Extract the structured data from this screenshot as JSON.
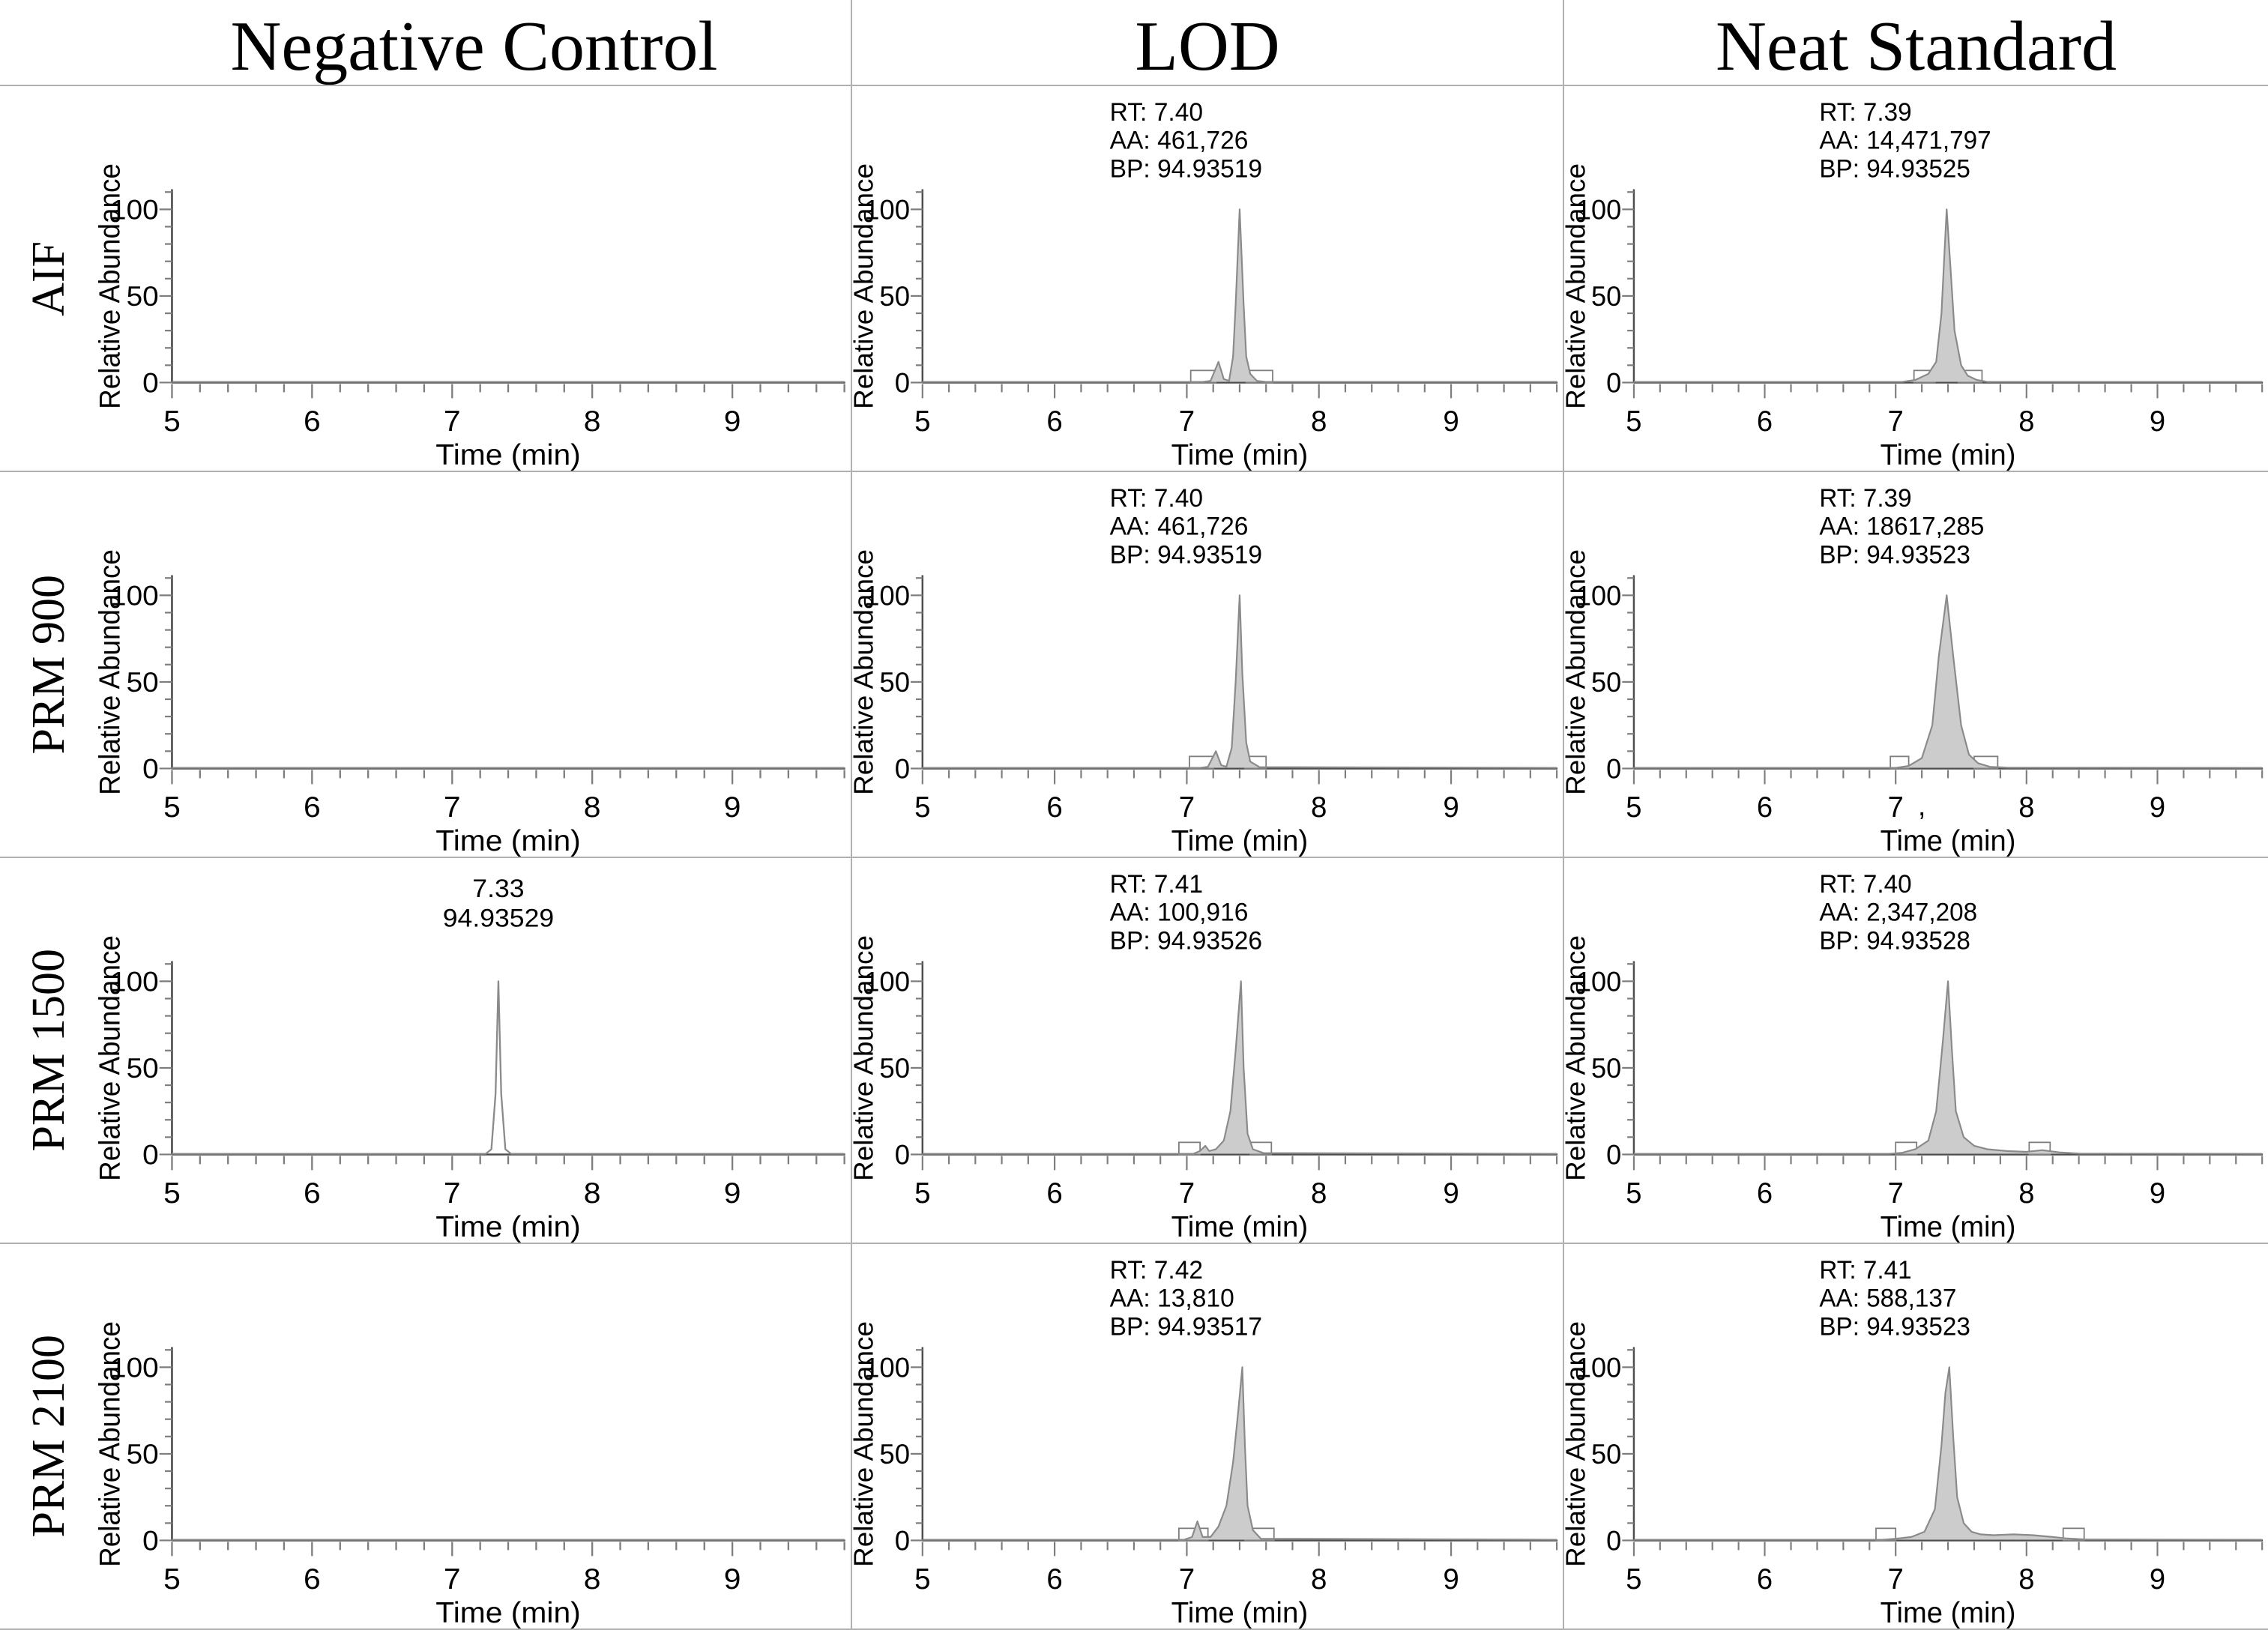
{
  "figure": {
    "column_headers": [
      "Negative Control",
      "LOD",
      "Neat Standard"
    ],
    "row_labels": [
      "AIF",
      "PRM 900",
      "PRM 1500",
      "PRM 2100"
    ]
  },
  "chart_data": {
    "type": "line",
    "description": "3x4 grid of extracted ion chromatograms (relative abundance vs retention time) comparing Negative Control, LOD and Neat Standard samples across AIF, PRM 900, PRM 1500 and PRM 2100 acquisition methods.",
    "axes": {
      "xlabel": "Time (min)",
      "ylabel": "Relative Abundance",
      "xlim": [
        5,
        9.8
      ],
      "xticks": [
        5,
        6,
        7,
        8,
        9
      ],
      "x_minor_step": 0.2,
      "ylim": [
        0,
        110
      ],
      "yticks": [
        0,
        50,
        100
      ],
      "y_minor_step": 10,
      "grid": false
    },
    "colors": {
      "peak_fill": "#cccccc",
      "peak_stroke": "#7f7f7f",
      "axis": "#4d4d4d",
      "tick": "#7d7d7d",
      "trace": "#8a8a8a",
      "divider": "#b0b0b0",
      "text": "#000000"
    },
    "panels": [
      {
        "row": "AIF",
        "column": "Negative Control",
        "annotation": null,
        "peak": null,
        "integration_boxes": [],
        "trace": [
          [
            5,
            0.4
          ],
          [
            9.8,
            0.4
          ]
        ]
      },
      {
        "row": "AIF",
        "column": "LOD",
        "annotation": {
          "align": "left",
          "lines": [
            "RT: 7.40",
            "AA: 461,726",
            "BP: 94.93519"
          ]
        },
        "peak": {
          "rt": 7.4,
          "area": 461726,
          "base_peak_mz": 94.93519,
          "height_rel": 100,
          "filled": true
        },
        "integration_boxes": [
          [
            7.03,
            7.22
          ],
          [
            7.45,
            7.65
          ]
        ],
        "trace": [
          [
            5,
            0.4
          ],
          [
            7.12,
            0.4
          ],
          [
            7.18,
            1
          ],
          [
            7.24,
            12
          ],
          [
            7.28,
            2
          ],
          [
            7.32,
            1
          ],
          [
            7.35,
            15
          ],
          [
            7.37,
            45
          ],
          [
            7.4,
            100
          ],
          [
            7.43,
            45
          ],
          [
            7.45,
            15
          ],
          [
            7.48,
            5
          ],
          [
            7.53,
            1
          ],
          [
            7.6,
            0.4
          ],
          [
            9.8,
            0.4
          ]
        ]
      },
      {
        "row": "AIF",
        "column": "Neat Standard",
        "annotation": {
          "align": "left",
          "lines": [
            "RT: 7.39",
            "AA: 14,471,797",
            "BP: 94.93525"
          ]
        },
        "peak": {
          "rt": 7.39,
          "area": 14471797,
          "base_peak_mz": 94.93525,
          "height_rel": 100,
          "filled": true
        },
        "integration_boxes": [
          [
            7.14,
            7.3
          ],
          [
            7.48,
            7.66
          ]
        ],
        "trace": [
          [
            5,
            0.4
          ],
          [
            7.05,
            0.4
          ],
          [
            7.15,
            1.5
          ],
          [
            7.25,
            5
          ],
          [
            7.31,
            12
          ],
          [
            7.35,
            40
          ],
          [
            7.37,
            70
          ],
          [
            7.39,
            100
          ],
          [
            7.42,
            65
          ],
          [
            7.45,
            30
          ],
          [
            7.5,
            10
          ],
          [
            7.55,
            4
          ],
          [
            7.62,
            1.5
          ],
          [
            7.7,
            0.4
          ],
          [
            9.8,
            0.4
          ]
        ]
      },
      {
        "row": "PRM 900",
        "column": "Negative Control",
        "annotation": null,
        "peak": null,
        "integration_boxes": [],
        "trace": [
          [
            5,
            0.4
          ],
          [
            9.8,
            0.4
          ]
        ]
      },
      {
        "row": "PRM 900",
        "column": "LOD",
        "annotation": {
          "align": "left",
          "lines": [
            "RT: 7.40",
            "AA: 461,726",
            "BP: 94.93519"
          ]
        },
        "peak": {
          "rt": 7.4,
          "area": 461726,
          "base_peak_mz": 94.93519,
          "height_rel": 100,
          "filled": true
        },
        "integration_boxes": [
          [
            7.02,
            7.2
          ],
          [
            7.44,
            7.6
          ]
        ],
        "trace": [
          [
            5,
            0.4
          ],
          [
            7.1,
            0.4
          ],
          [
            7.16,
            1
          ],
          [
            7.22,
            10
          ],
          [
            7.26,
            2
          ],
          [
            7.3,
            1
          ],
          [
            7.34,
            12
          ],
          [
            7.37,
            50
          ],
          [
            7.4,
            100
          ],
          [
            7.42,
            55
          ],
          [
            7.45,
            15
          ],
          [
            7.48,
            4
          ],
          [
            7.55,
            0.8
          ],
          [
            9.8,
            0.4
          ]
        ]
      },
      {
        "row": "PRM 900",
        "column": "Neat Standard",
        "annotation": {
          "align": "left",
          "lines": [
            "RT: 7.39",
            "AA: 18617,285",
            "BP: 94.93523"
          ]
        },
        "peak": {
          "rt": 7.39,
          "area": 18617285,
          "base_peak_mz": 94.93523,
          "height_rel": 100,
          "filled": true
        },
        "integration_boxes": [
          [
            6.96,
            7.1
          ],
          [
            7.6,
            7.78
          ]
        ],
        "tick_artifact": {
          "text": ",",
          "time": 7.17
        },
        "trace": [
          [
            5,
            0.4
          ],
          [
            7.0,
            0.4
          ],
          [
            7.1,
            1.5
          ],
          [
            7.2,
            6
          ],
          [
            7.28,
            25
          ],
          [
            7.33,
            65
          ],
          [
            7.39,
            100
          ],
          [
            7.44,
            65
          ],
          [
            7.5,
            25
          ],
          [
            7.56,
            8
          ],
          [
            7.63,
            3
          ],
          [
            7.72,
            1
          ],
          [
            7.85,
            0.5
          ],
          [
            9.8,
            0.4
          ]
        ]
      },
      {
        "row": "PRM 1500",
        "column": "Negative Control",
        "annotation": {
          "align": "center",
          "anchor_time": 7.33,
          "lines": [
            "7.33",
            "94.93529"
          ]
        },
        "peak": {
          "rt": 7.33,
          "base_peak_mz": 94.93529,
          "height_rel": 100,
          "filled": false
        },
        "integration_boxes": [],
        "trace": [
          [
            5,
            0.4
          ],
          [
            7.24,
            0.4
          ],
          [
            7.28,
            3
          ],
          [
            7.31,
            35
          ],
          [
            7.33,
            100
          ],
          [
            7.35,
            35
          ],
          [
            7.38,
            3
          ],
          [
            7.42,
            0.4
          ],
          [
            9.8,
            0.4
          ]
        ]
      },
      {
        "row": "PRM 1500",
        "column": "LOD",
        "annotation": {
          "align": "left",
          "lines": [
            "RT: 7.41",
            "AA: 100,916",
            "BP: 94.93526"
          ]
        },
        "peak": {
          "rt": 7.41,
          "area": 100916,
          "base_peak_mz": 94.93526,
          "height_rel": 100,
          "filled": true
        },
        "integration_boxes": [
          [
            6.94,
            7.1
          ],
          [
            7.48,
            7.64
          ]
        ],
        "trace": [
          [
            5,
            0.4
          ],
          [
            7.05,
            0.4
          ],
          [
            7.1,
            2
          ],
          [
            7.14,
            5
          ],
          [
            7.17,
            2
          ],
          [
            7.22,
            3
          ],
          [
            7.28,
            8
          ],
          [
            7.33,
            25
          ],
          [
            7.37,
            60
          ],
          [
            7.41,
            100
          ],
          [
            7.43,
            50
          ],
          [
            7.46,
            12
          ],
          [
            7.5,
            3
          ],
          [
            7.58,
            0.8
          ],
          [
            9.8,
            0.4
          ]
        ]
      },
      {
        "row": "PRM 1500",
        "column": "Neat Standard",
        "annotation": {
          "align": "left",
          "lines": [
            "RT: 7.40",
            "AA: 2,347,208",
            "BP: 94.93528"
          ]
        },
        "peak": {
          "rt": 7.4,
          "area": 2347208,
          "base_peak_mz": 94.93528,
          "height_rel": 100,
          "filled": true
        },
        "integration_boxes": [
          [
            7.0,
            7.16
          ],
          [
            8.02,
            8.18
          ]
        ],
        "trace": [
          [
            5,
            0.4
          ],
          [
            6.95,
            0.4
          ],
          [
            7.05,
            1
          ],
          [
            7.15,
            3
          ],
          [
            7.25,
            8
          ],
          [
            7.31,
            25
          ],
          [
            7.36,
            65
          ],
          [
            7.4,
            100
          ],
          [
            7.43,
            60
          ],
          [
            7.46,
            25
          ],
          [
            7.52,
            10
          ],
          [
            7.6,
            5
          ],
          [
            7.7,
            3
          ],
          [
            7.85,
            2
          ],
          [
            8.0,
            1.5
          ],
          [
            8.12,
            2.5
          ],
          [
            8.25,
            1.2
          ],
          [
            8.4,
            0.5
          ],
          [
            9.8,
            0.4
          ]
        ]
      },
      {
        "row": "PRM 2100",
        "column": "Negative Control",
        "annotation": null,
        "peak": null,
        "integration_boxes": [],
        "trace": [
          [
            5,
            0.4
          ],
          [
            9.8,
            0.4
          ]
        ]
      },
      {
        "row": "PRM 2100",
        "column": "LOD",
        "annotation": {
          "align": "left",
          "lines": [
            "RT: 7.42",
            "AA: 13,810",
            "BP: 94.93517"
          ]
        },
        "peak": {
          "rt": 7.42,
          "area": 13810,
          "base_peak_mz": 94.93517,
          "height_rel": 100,
          "filled": true
        },
        "integration_boxes": [
          [
            6.94,
            7.16
          ],
          [
            7.44,
            7.66
          ]
        ],
        "trace": [
          [
            5,
            0.4
          ],
          [
            6.98,
            0.4
          ],
          [
            7.04,
            2
          ],
          [
            7.08,
            11
          ],
          [
            7.12,
            2
          ],
          [
            7.18,
            2
          ],
          [
            7.24,
            8
          ],
          [
            7.3,
            20
          ],
          [
            7.35,
            45
          ],
          [
            7.39,
            75
          ],
          [
            7.42,
            100
          ],
          [
            7.44,
            55
          ],
          [
            7.46,
            20
          ],
          [
            7.5,
            6
          ],
          [
            7.56,
            1
          ],
          [
            9.8,
            0.4
          ]
        ]
      },
      {
        "row": "PRM 2100",
        "column": "Neat Standard",
        "annotation": {
          "align": "left",
          "lines": [
            "RT: 7.41",
            "AA: 588,137",
            "BP: 94.93523"
          ]
        },
        "peak": {
          "rt": 7.41,
          "area": 588137,
          "base_peak_mz": 94.93523,
          "height_rel": 100,
          "filled": true
        },
        "integration_boxes": [
          [
            6.85,
            7.0
          ],
          [
            8.28,
            8.44
          ]
        ],
        "trace": [
          [
            5,
            0.4
          ],
          [
            6.9,
            0.4
          ],
          [
            7.0,
            1
          ],
          [
            7.12,
            2
          ],
          [
            7.22,
            5
          ],
          [
            7.3,
            18
          ],
          [
            7.35,
            55
          ],
          [
            7.38,
            85
          ],
          [
            7.41,
            100
          ],
          [
            7.44,
            60
          ],
          [
            7.47,
            25
          ],
          [
            7.52,
            10
          ],
          [
            7.58,
            5
          ],
          [
            7.65,
            3.5
          ],
          [
            7.75,
            3
          ],
          [
            7.9,
            3.5
          ],
          [
            8.05,
            3
          ],
          [
            8.2,
            2
          ],
          [
            8.3,
            1.2
          ],
          [
            8.45,
            0.5
          ],
          [
            9.8,
            0.4
          ]
        ]
      }
    ]
  }
}
